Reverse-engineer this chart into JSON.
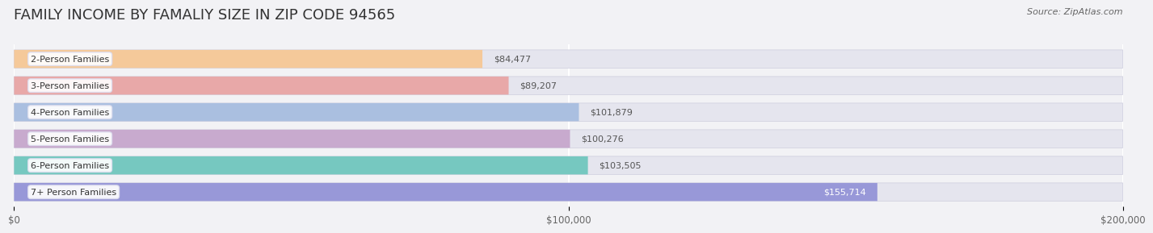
{
  "title": "FAMILY INCOME BY FAMALIY SIZE IN ZIP CODE 94565",
  "source": "Source: ZipAtlas.com",
  "categories": [
    "2-Person Families",
    "3-Person Families",
    "4-Person Families",
    "5-Person Families",
    "6-Person Families",
    "7+ Person Families"
  ],
  "values": [
    84477,
    89207,
    101879,
    100276,
    103505,
    155714
  ],
  "bar_colors": [
    "#f5c99a",
    "#e8a8a8",
    "#aabfe0",
    "#c8aace",
    "#76c8c0",
    "#9898d8"
  ],
  "value_labels": [
    "$84,477",
    "$89,207",
    "$101,879",
    "$100,276",
    "$103,505",
    "$155,714"
  ],
  "last_bar_label_color": "white",
  "other_bar_label_color": "#555555",
  "xlim": [
    0,
    200000
  ],
  "xticks": [
    0,
    100000,
    200000
  ],
  "xtick_labels": [
    "$0",
    "$100,000",
    "$200,000"
  ],
  "bar_height": 0.68,
  "background_color": "#f2f2f5",
  "bar_bg_color": "#e5e5ee",
  "title_fontsize": 13,
  "label_fontsize": 8,
  "value_fontsize": 8,
  "source_fontsize": 8
}
